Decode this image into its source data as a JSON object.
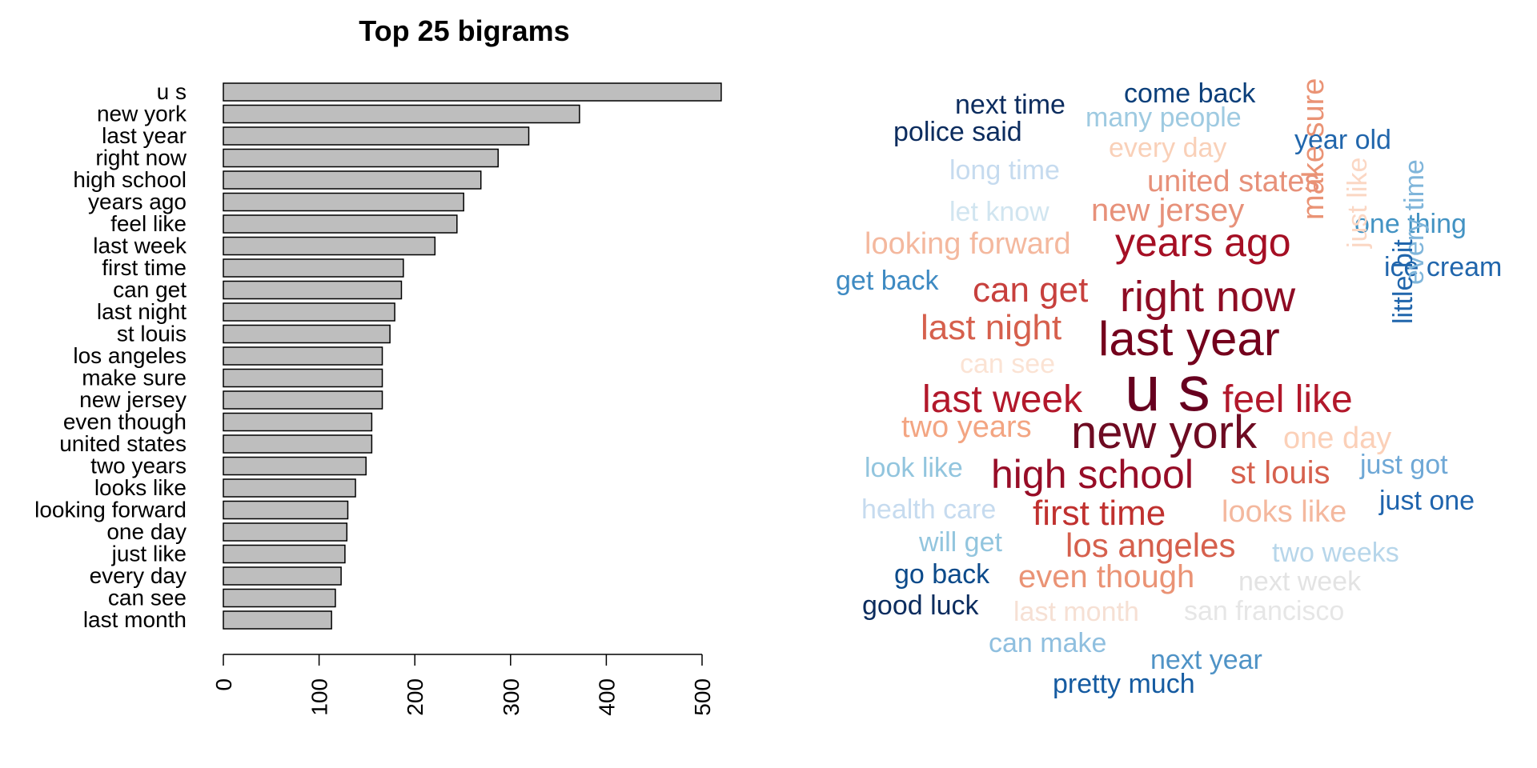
{
  "chart_data": [
    {
      "type": "bar",
      "orientation": "horizontal",
      "title": "Top 25 bigrams",
      "xlabel": "",
      "ylabel": "",
      "xlim": [
        0,
        520
      ],
      "xticks": [
        0,
        100,
        200,
        300,
        400,
        500
      ],
      "grid": false,
      "bar_color": "#bebebe",
      "categories": [
        "u s",
        "new york",
        "last year",
        "right now",
        "high school",
        "years ago",
        "feel like",
        "last week",
        "first time",
        "can get",
        "last night",
        "st louis",
        "los angeles",
        "make sure",
        "new jersey",
        "even though",
        "united states",
        "two years",
        "looks like",
        "looking forward",
        "one day",
        "just like",
        "every day",
        "can see",
        "last month"
      ],
      "values": [
        520,
        372,
        319,
        287,
        269,
        251,
        244,
        221,
        188,
        186,
        179,
        174,
        166,
        166,
        166,
        155,
        155,
        149,
        138,
        130,
        129,
        127,
        123,
        117,
        113
      ]
    },
    {
      "type": "wordcloud",
      "palette": "RdBu",
      "words": [
        {
          "text": "come back",
          "color": "#0b3f7a"
        },
        {
          "text": "next time",
          "color": "#0c2c5e"
        },
        {
          "text": "many people",
          "color": "#9ecae1"
        },
        {
          "text": "police said",
          "color": "#0c2c5e"
        },
        {
          "text": "year old",
          "color": "#2166ac"
        },
        {
          "text": "every day",
          "color": "#f9d0b8"
        },
        {
          "text": "long time",
          "color": "#c6dbef"
        },
        {
          "text": "united states",
          "color": "#e7917a"
        },
        {
          "text": "let know",
          "color": "#d1e5f0"
        },
        {
          "text": "new jersey",
          "color": "#e7917a"
        },
        {
          "text": "one thing",
          "color": "#4393c3"
        },
        {
          "text": "looking forward",
          "color": "#f4b89e"
        },
        {
          "text": "years ago",
          "color": "#a50f24"
        },
        {
          "text": "make sure",
          "color": "#ea9375"
        },
        {
          "text": "just like",
          "color": "#fbd7c4"
        },
        {
          "text": "ice cream",
          "color": "#2166ac"
        },
        {
          "text": "get back",
          "color": "#3e8ac2"
        },
        {
          "text": "can get",
          "color": "#c7403d"
        },
        {
          "text": "right now",
          "color": "#8e0c24"
        },
        {
          "text": "every time",
          "color": "#7fb5da"
        },
        {
          "text": "last night",
          "color": "#d6604d"
        },
        {
          "text": "last year",
          "color": "#74001c"
        },
        {
          "text": "little bit",
          "color": "#2166ac"
        },
        {
          "text": "can see",
          "color": "#fbe3d4"
        },
        {
          "text": "u s",
          "color": "#67001f"
        },
        {
          "text": "last week",
          "color": "#b2182b"
        },
        {
          "text": "feel like",
          "color": "#b2182b"
        },
        {
          "text": "two years",
          "color": "#f3a582"
        },
        {
          "text": "new york",
          "color": "#6e0b22"
        },
        {
          "text": "one day",
          "color": "#fbd0b8"
        },
        {
          "text": "look like",
          "color": "#92c5de"
        },
        {
          "text": "high school",
          "color": "#970d27"
        },
        {
          "text": "st louis",
          "color": "#d6604d"
        },
        {
          "text": "just got",
          "color": "#6fa8d6"
        },
        {
          "text": "just one",
          "color": "#1f64ad"
        },
        {
          "text": "health care",
          "color": "#c6dbef"
        },
        {
          "text": "first time",
          "color": "#c0312f"
        },
        {
          "text": "looks like",
          "color": "#f4b89e"
        },
        {
          "text": "will get",
          "color": "#92c5de"
        },
        {
          "text": "los angeles",
          "color": "#d6604d"
        },
        {
          "text": "two weeks",
          "color": "#b7d6ea"
        },
        {
          "text": "go back",
          "color": "#0b4a8a"
        },
        {
          "text": "even though",
          "color": "#ea9375"
        },
        {
          "text": "next week",
          "color": "#e3e3e3"
        },
        {
          "text": "good luck",
          "color": "#0b2c5e"
        },
        {
          "text": "last month",
          "color": "#f6e0d4"
        },
        {
          "text": "san francisco",
          "color": "#e6e6e6"
        },
        {
          "text": "can make",
          "color": "#8fbfdf"
        },
        {
          "text": "next year",
          "color": "#4f93c6"
        },
        {
          "text": "pretty much",
          "color": "#155ba1"
        }
      ]
    }
  ]
}
